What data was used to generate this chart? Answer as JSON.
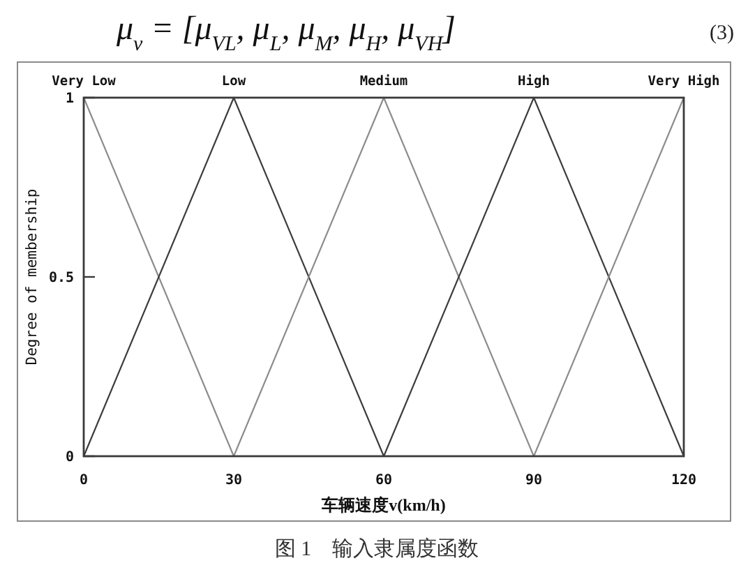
{
  "chart_data": {
    "type": "line",
    "annotations": [
      "μ$_{v}$ = [μ$_{VL}$, μ$_{L}$, μ$_{M}$, μ$_{H}$, μ$_{VH}$]",
      "(3)",
      "图 1　输入隶属度函数"
    ],
    "xlabel": "车辆速度v(km/h)",
    "ylabel": "Degree of membership",
    "xlim": [
      0,
      120
    ],
    "ylim": [
      0,
      1
    ],
    "xticks": [
      0,
      30,
      60,
      90,
      120
    ],
    "yticks": [
      0,
      0.5,
      1
    ],
    "series": [
      {
        "name": "Very Low",
        "color": "#8c8c8c",
        "x": [
          0,
          30
        ],
        "values": [
          1,
          0
        ]
      },
      {
        "name": "Low",
        "color": "#3c3c3c",
        "x": [
          0,
          30,
          60
        ],
        "values": [
          0,
          1,
          0
        ]
      },
      {
        "name": "Medium",
        "color": "#8c8c8c",
        "x": [
          30,
          60,
          90
        ],
        "values": [
          0,
          1,
          0
        ]
      },
      {
        "name": "High",
        "color": "#3c3c3c",
        "x": [
          60,
          90,
          120
        ],
        "values": [
          0,
          1,
          0
        ]
      },
      {
        "name": "Very High",
        "color": "#8c8c8c",
        "x": [
          90,
          120
        ],
        "values": [
          0,
          1
        ]
      }
    ]
  }
}
